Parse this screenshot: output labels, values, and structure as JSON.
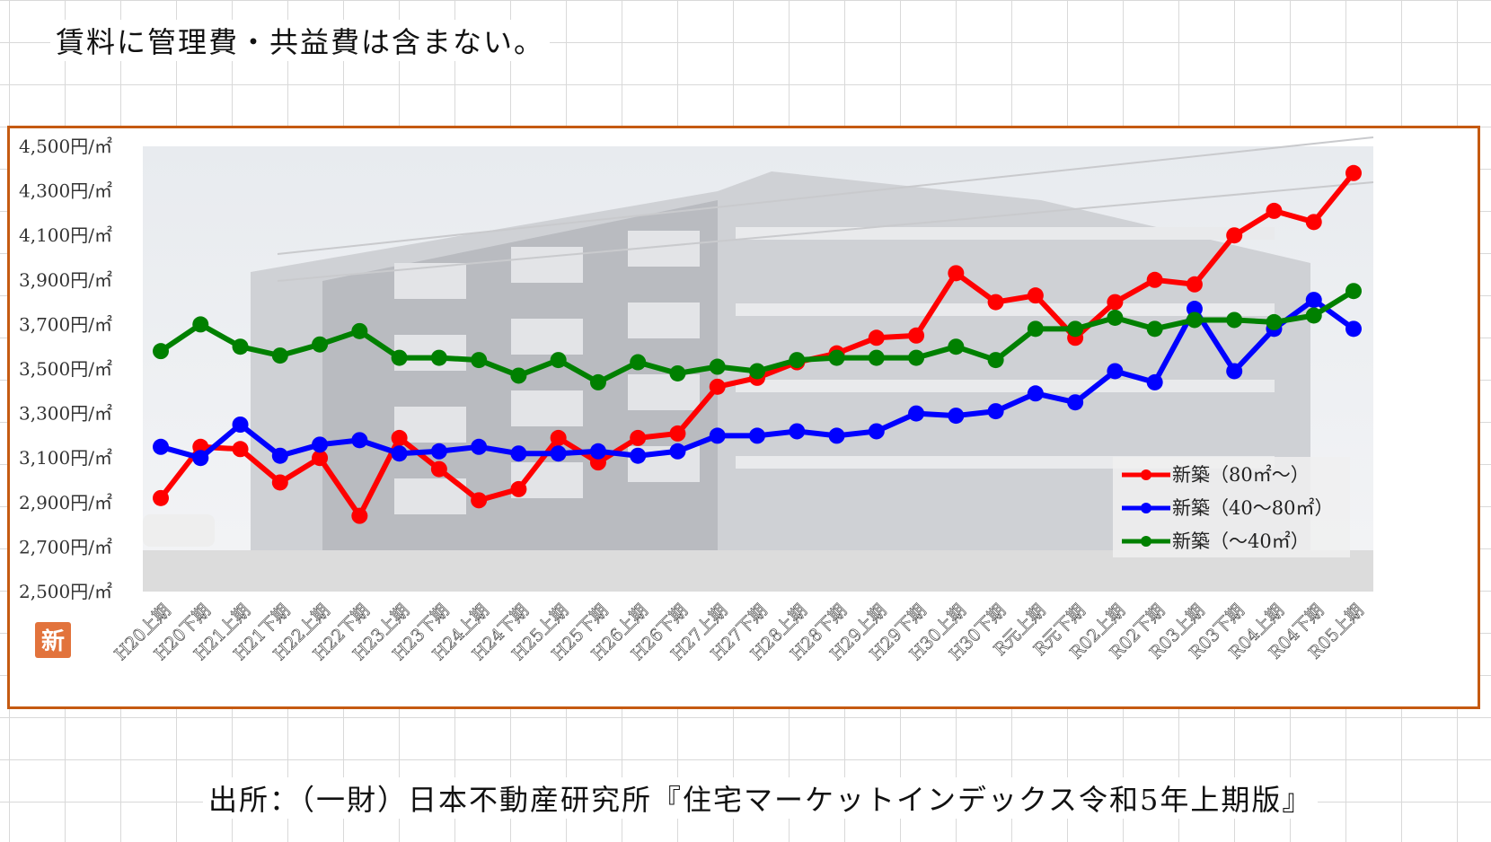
{
  "notes": {
    "top": "賃料に管理費・共益費は含まない。",
    "source": "出所：（一財）日本不動産研究所『住宅マーケットインデックス令和5年上期版』"
  },
  "badge": {
    "label": "新",
    "color": "#e2733c"
  },
  "chart_data": {
    "type": "line",
    "ylim": [
      2500,
      4500
    ],
    "yticks": [
      2500,
      2700,
      2900,
      3100,
      3300,
      3500,
      3700,
      3900,
      4100,
      4300,
      4500
    ],
    "ytick_labels": [
      "2,500円/㎡",
      "2,700円/㎡",
      "2,900円/㎡",
      "3,100円/㎡",
      "3,300円/㎡",
      "3,500円/㎡",
      "3,700円/㎡",
      "3,900円/㎡",
      "4,100円/㎡",
      "4,300円/㎡",
      "4,500円/㎡"
    ],
    "categories": [
      "H20上期",
      "H20下期",
      "H21上期",
      "H21下期",
      "H22上期",
      "H22下期",
      "H23上期",
      "H23下期",
      "H24上期",
      "H24下期",
      "H25上期",
      "H25下期",
      "H26上期",
      "H26下期",
      "H27上期",
      "H27下期",
      "H28上期",
      "H28下期",
      "H29上期",
      "H29下期",
      "H30上期",
      "H30下期",
      "R元上期",
      "R元下期",
      "R02上期",
      "R02下期",
      "R03上期",
      "R03下期",
      "R04上期",
      "R04下期",
      "R05上期"
    ],
    "series": [
      {
        "name": "新築（80㎡～）",
        "color": "#ff0000",
        "values": [
          2920,
          3150,
          3140,
          2990,
          3100,
          2840,
          3190,
          3050,
          2910,
          2960,
          3190,
          3080,
          3190,
          3210,
          3420,
          3460,
          3530,
          3570,
          3640,
          3650,
          3930,
          3800,
          3830,
          3640,
          3800,
          3900,
          3880,
          4100,
          4210,
          4160,
          4380
        ]
      },
      {
        "name": "新築（40～80㎡）",
        "color": "#0000ff",
        "values": [
          3150,
          3100,
          3250,
          3110,
          3160,
          3180,
          3120,
          3130,
          3150,
          3120,
          3120,
          3130,
          3110,
          3130,
          3200,
          3200,
          3220,
          3200,
          3220,
          3300,
          3290,
          3310,
          3390,
          3350,
          3490,
          3440,
          3770,
          3490,
          3680,
          3810,
          3680
        ]
      },
      {
        "name": "新築（～40㎡）",
        "color": "#008000",
        "values": [
          3580,
          3700,
          3600,
          3560,
          3610,
          3670,
          3550,
          3550,
          3540,
          3470,
          3540,
          3440,
          3530,
          3480,
          3510,
          3490,
          3540,
          3550,
          3550,
          3550,
          3600,
          3540,
          3680,
          3680,
          3730,
          3680,
          3720,
          3720,
          3710,
          3740,
          3850
        ]
      }
    ],
    "legend": "bottom-right"
  }
}
